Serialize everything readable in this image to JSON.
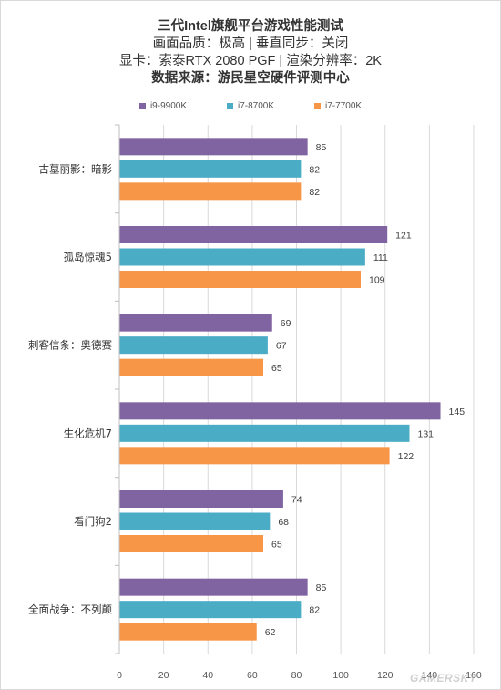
{
  "titles": {
    "line1": "三代Intel旗舰平台游戏性能测试",
    "line2": "画面品质：极高 | 垂直同步：关闭",
    "line3": "显卡：索泰RTX 2080 PGF | 渲染分辨率：2K",
    "line4": "数据来源：游民星空硬件评测中心"
  },
  "watermark": "GAMERSKY",
  "chart_data": {
    "type": "bar",
    "orientation": "horizontal",
    "categories": [
      "古墓丽影：暗影",
      "孤岛惊魂5",
      "刺客信条：奥德赛",
      "生化危机7",
      "看门狗2",
      "全面战争：不列颠"
    ],
    "series": [
      {
        "name": "i9-9900K",
        "color": "#8064a2",
        "values": [
          85,
          121,
          69,
          145,
          74,
          85
        ]
      },
      {
        "name": "i7-8700K",
        "color": "#4bacc6",
        "values": [
          82,
          111,
          67,
          131,
          68,
          82
        ]
      },
      {
        "name": "i7-7700K",
        "color": "#f79646",
        "values": [
          82,
          109,
          65,
          122,
          65,
          62
        ]
      }
    ],
    "xlim": [
      0,
      160
    ],
    "xticks": [
      0,
      20,
      40,
      60,
      80,
      100,
      120,
      140,
      160
    ],
    "grid": true,
    "legend": "top",
    "data_labels": true
  }
}
